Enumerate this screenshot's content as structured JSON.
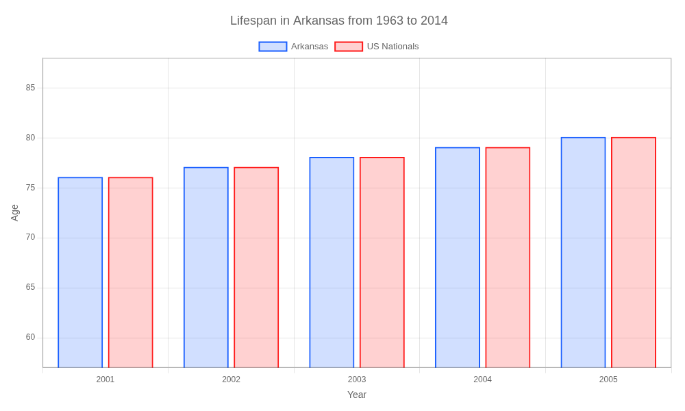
{
  "chart_data": {
    "type": "bar",
    "title": "Lifespan in Arkansas from 1963 to 2014",
    "xlabel": "Year",
    "ylabel": "Age",
    "categories": [
      "2001",
      "2002",
      "2003",
      "2004",
      "2005"
    ],
    "series": [
      {
        "name": "Arkansas",
        "color": "#1a5fff",
        "values": [
          76.1,
          77.1,
          78.1,
          79.1,
          80.1
        ]
      },
      {
        "name": "US Nationals",
        "color": "#ff1a1a",
        "values": [
          76.1,
          77.1,
          78.1,
          79.1,
          80.1
        ]
      }
    ],
    "ylim": [
      57,
      88
    ],
    "yticks": [
      60,
      65,
      70,
      75,
      80,
      85
    ],
    "grid": true,
    "legend": "top"
  }
}
